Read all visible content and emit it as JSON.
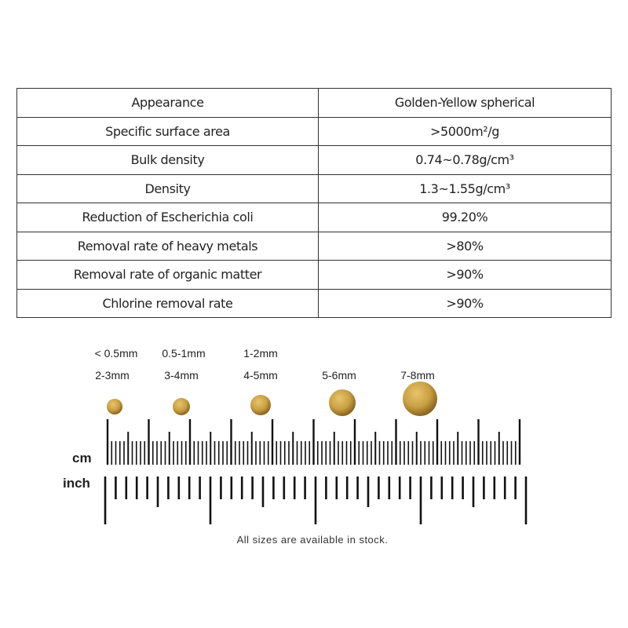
{
  "spec_table": {
    "rows": [
      {
        "property": "Appearance",
        "value": "Golden-Yellow spherical"
      },
      {
        "property": "Specific surface area",
        "value": ">5000m²/g"
      },
      {
        "property": "Bulk density",
        "value": "0.74~0.78g/cm³"
      },
      {
        "property": "Density",
        "value": "1.3~1.55g/cm³"
      },
      {
        "property": "Reduction of Escherichia coli",
        "value": "99.20%"
      },
      {
        "property": "Removal rate of heavy metals",
        "value": ">80%"
      },
      {
        "property": "Removal rate of organic matter",
        "value": ">90%"
      },
      {
        "property": "Chlorine removal rate",
        "value": ">90%"
      }
    ]
  },
  "sizes": {
    "top_row": [
      "< 0.5mm",
      "0.5-1mm",
      "1-2mm"
    ],
    "bottom_row": [
      "2-3mm",
      "3-4mm",
      "4-5mm",
      "5-6mm",
      "7-8mm"
    ]
  },
  "ruler": {
    "cm_label": "cm",
    "inch_label": "inch",
    "cm_range": [
      0,
      10
    ],
    "inch_range": [
      0,
      4
    ]
  },
  "caption": "All sizes are available in stock.",
  "colors": {
    "sphere": "#c9a044",
    "ink": "#111111"
  }
}
